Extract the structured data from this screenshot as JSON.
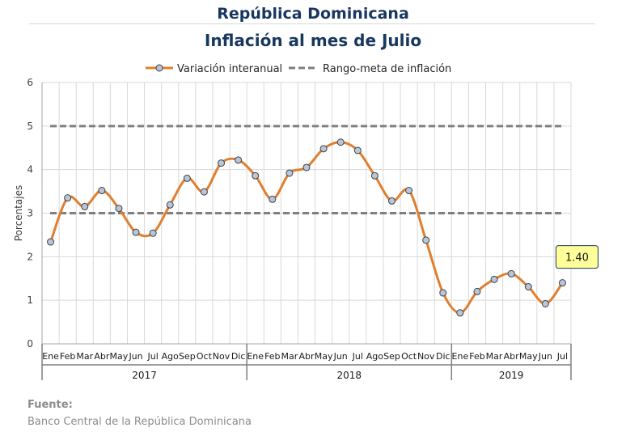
{
  "header": {
    "title": "República Dominicana",
    "subtitle": "Inflación al mes de Julio"
  },
  "source": {
    "label": "Fuente:",
    "text": "Banco Central de la República Dominicana"
  },
  "chart_data": {
    "type": "line",
    "ylabel": "Porcentajes",
    "ylim": [
      0,
      6
    ],
    "yticks": [
      0,
      1,
      2,
      3,
      4,
      5,
      6
    ],
    "grid": true,
    "legend_position": "top",
    "month_labels": [
      "Ene",
      "Feb",
      "Mar",
      "Abr",
      "May",
      "Jun",
      "Jul",
      "Ago",
      "Sep",
      "Oct",
      "Nov",
      "Dic",
      "Ene",
      "Feb",
      "Mar",
      "Abr",
      "May",
      "Jun",
      "Jul",
      "Ago",
      "Sep",
      "Oct",
      "Nov",
      "Dic",
      "Ene",
      "Feb",
      "Mar",
      "Abr",
      "May",
      "Jun",
      "Jul"
    ],
    "year_groups": [
      {
        "label": "2017",
        "count": 12
      },
      {
        "label": "2018",
        "count": 12
      },
      {
        "label": "2019",
        "count": 7
      }
    ],
    "series": [
      {
        "name": "Variación interanual",
        "color": "#e07f2e",
        "marker_color": "#b7c6da",
        "values": [
          2.34,
          3.35,
          3.15,
          3.52,
          3.11,
          2.56,
          2.54,
          3.19,
          3.8,
          3.49,
          4.15,
          4.22,
          3.86,
          3.32,
          3.92,
          4.05,
          4.48,
          4.63,
          4.44,
          3.86,
          3.28,
          3.52,
          2.38,
          1.17,
          0.71,
          1.2,
          1.48,
          1.61,
          1.31,
          0.92,
          1.4
        ]
      },
      {
        "name": "Rango-meta de inflación",
        "color": "#7f7f7f",
        "style": "dashed",
        "bounds": [
          3,
          5
        ]
      }
    ],
    "annotation": {
      "text": "1.40",
      "point_index": 30,
      "fill": "#ffff99",
      "border": "#17375e"
    }
  }
}
